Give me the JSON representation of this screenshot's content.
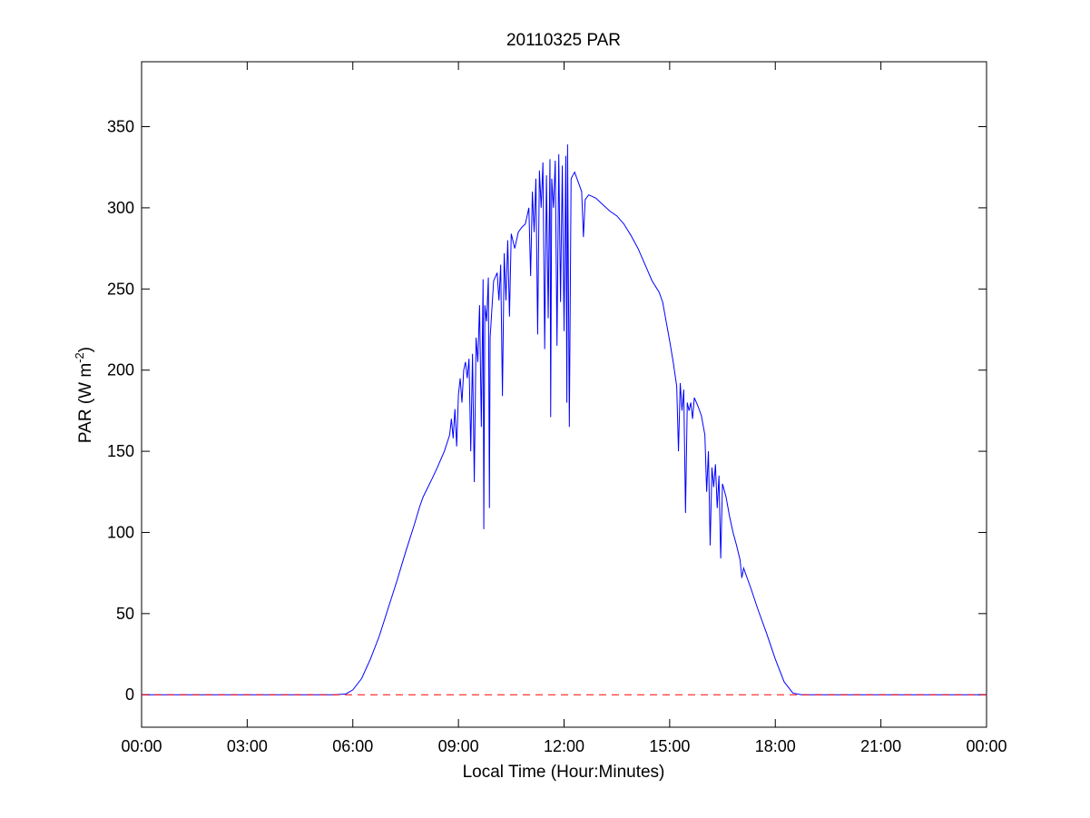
{
  "chart_data": {
    "type": "line",
    "title": "20110325 PAR",
    "xlabel": "Local Time (Hour:Minutes)",
    "ylabel": "PAR (W m",
    "ylabel_superscript": "-2",
    "ylabel_close": ")",
    "xlim": [
      0,
      24
    ],
    "ylim": [
      -20,
      390
    ],
    "x_ticks": [
      0,
      3,
      6,
      9,
      12,
      15,
      18,
      21,
      24
    ],
    "x_tick_labels": [
      "00:00",
      "03:00",
      "06:00",
      "09:00",
      "12:00",
      "15:00",
      "18:00",
      "21:00",
      "00:00"
    ],
    "y_ticks": [
      0,
      50,
      100,
      150,
      200,
      250,
      300,
      350
    ],
    "y_tick_labels": [
      "0",
      "50",
      "100",
      "150",
      "200",
      "250",
      "300",
      "350"
    ],
    "grid": false,
    "series": [
      {
        "color": "#0000ff",
        "style": "solid",
        "points": [
          [
            0,
            0
          ],
          [
            5.5,
            0
          ],
          [
            5.8,
            0.5
          ],
          [
            6.0,
            3
          ],
          [
            6.25,
            10
          ],
          [
            6.5,
            22
          ],
          [
            6.75,
            36
          ],
          [
            7.0,
            53
          ],
          [
            7.25,
            70
          ],
          [
            7.5,
            88
          ],
          [
            7.75,
            105
          ],
          [
            7.9,
            116
          ],
          [
            8.0,
            122
          ],
          [
            8.25,
            133
          ],
          [
            8.4,
            140
          ],
          [
            8.5,
            145
          ],
          [
            8.6,
            150
          ],
          [
            8.75,
            160
          ],
          [
            8.8,
            170
          ],
          [
            8.85,
            158
          ],
          [
            8.9,
            176
          ],
          [
            8.95,
            153
          ],
          [
            9.0,
            185
          ],
          [
            9.05,
            195
          ],
          [
            9.1,
            180
          ],
          [
            9.15,
            200
          ],
          [
            9.2,
            205
          ],
          [
            9.25,
            195
          ],
          [
            9.3,
            207
          ],
          [
            9.35,
            150
          ],
          [
            9.4,
            210
          ],
          [
            9.45,
            131
          ],
          [
            9.5,
            220
          ],
          [
            9.55,
            205
          ],
          [
            9.6,
            240
          ],
          [
            9.65,
            165
          ],
          [
            9.7,
            256
          ],
          [
            9.72,
            102
          ],
          [
            9.75,
            240
          ],
          [
            9.8,
            230
          ],
          [
            9.85,
            257
          ],
          [
            9.88,
            115
          ],
          [
            9.9,
            220
          ],
          [
            10.0,
            255
          ],
          [
            10.1,
            260
          ],
          [
            10.15,
            243
          ],
          [
            10.2,
            265
          ],
          [
            10.25,
            184
          ],
          [
            10.3,
            272
          ],
          [
            10.35,
            243
          ],
          [
            10.4,
            280
          ],
          [
            10.45,
            233
          ],
          [
            10.5,
            284
          ],
          [
            10.6,
            275
          ],
          [
            10.7,
            285
          ],
          [
            10.8,
            288
          ],
          [
            10.9,
            290
          ],
          [
            11.0,
            300
          ],
          [
            11.05,
            258
          ],
          [
            11.1,
            310
          ],
          [
            11.15,
            285
          ],
          [
            11.2,
            318
          ],
          [
            11.25,
            222
          ],
          [
            11.3,
            323
          ],
          [
            11.35,
            300
          ],
          [
            11.4,
            328
          ],
          [
            11.45,
            213
          ],
          [
            11.5,
            320
          ],
          [
            11.55,
            232
          ],
          [
            11.6,
            330
          ],
          [
            11.62,
            171
          ],
          [
            11.65,
            318
          ],
          [
            11.7,
            300
          ],
          [
            11.75,
            329
          ],
          [
            11.8,
            215
          ],
          [
            11.85,
            333
          ],
          [
            11.9,
            242
          ],
          [
            11.95,
            326
          ],
          [
            12.0,
            224
          ],
          [
            12.05,
            332
          ],
          [
            12.08,
            180
          ],
          [
            12.1,
            339
          ],
          [
            12.15,
            165
          ],
          [
            12.2,
            318
          ],
          [
            12.3,
            322
          ],
          [
            12.4,
            316
          ],
          [
            12.5,
            310
          ],
          [
            12.55,
            282
          ],
          [
            12.6,
            305
          ],
          [
            12.7,
            308
          ],
          [
            12.9,
            306
          ],
          [
            13.1,
            302
          ],
          [
            13.3,
            298
          ],
          [
            13.5,
            295
          ],
          [
            13.7,
            290
          ],
          [
            13.9,
            283
          ],
          [
            14.1,
            275
          ],
          [
            14.3,
            265
          ],
          [
            14.5,
            255
          ],
          [
            14.7,
            248
          ],
          [
            14.8,
            242
          ],
          [
            14.9,
            230
          ],
          [
            15.0,
            218
          ],
          [
            15.1,
            205
          ],
          [
            15.2,
            190
          ],
          [
            15.25,
            150
          ],
          [
            15.3,
            192
          ],
          [
            15.35,
            175
          ],
          [
            15.4,
            188
          ],
          [
            15.45,
            112
          ],
          [
            15.5,
            180
          ],
          [
            15.55,
            175
          ],
          [
            15.6,
            180
          ],
          [
            15.65,
            170
          ],
          [
            15.7,
            183
          ],
          [
            15.8,
            178
          ],
          [
            15.9,
            172
          ],
          [
            16.0,
            160
          ],
          [
            16.05,
            125
          ],
          [
            16.1,
            150
          ],
          [
            16.15,
            92
          ],
          [
            16.2,
            140
          ],
          [
            16.25,
            128
          ],
          [
            16.3,
            142
          ],
          [
            16.35,
            115
          ],
          [
            16.4,
            135
          ],
          [
            16.45,
            84
          ],
          [
            16.5,
            130
          ],
          [
            16.6,
            122
          ],
          [
            16.7,
            110
          ],
          [
            16.8,
            100
          ],
          [
            16.9,
            92
          ],
          [
            17.0,
            83
          ],
          [
            17.05,
            72
          ],
          [
            17.1,
            78
          ],
          [
            17.3,
            66
          ],
          [
            17.5,
            53
          ],
          [
            17.75,
            38
          ],
          [
            18.0,
            22
          ],
          [
            18.25,
            8
          ],
          [
            18.5,
            1
          ],
          [
            18.75,
            0
          ],
          [
            24,
            0
          ]
        ]
      },
      {
        "color": "#ff0000",
        "style": "dashed",
        "points": [
          [
            0,
            0
          ],
          [
            24,
            0
          ]
        ]
      }
    ]
  }
}
